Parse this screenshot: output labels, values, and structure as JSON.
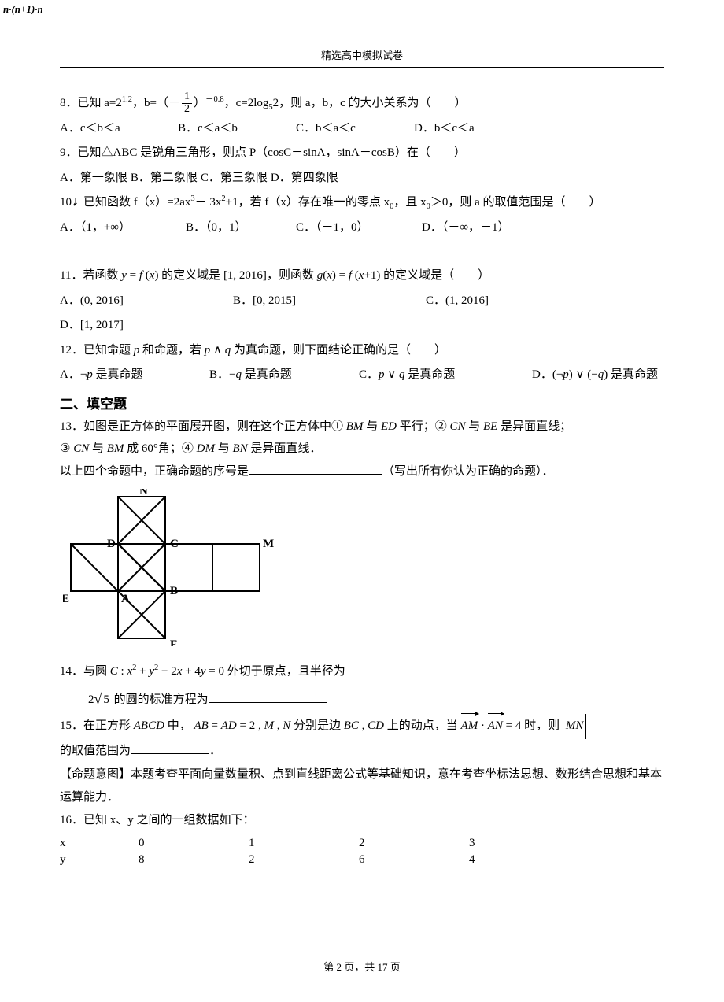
{
  "corner_note": "n·(n+1)·n",
  "header": "精选高中模拟试卷",
  "q8": {
    "stem_pre": "8．已知 a=2",
    "exp1": "1.2",
    "mid1": "，b=（－",
    "frac_num": "1",
    "frac_den": "2",
    "mid2": "）",
    "exp2": "－0.8",
    "mid3": "，c=2log",
    "sub52": "5",
    "tail": "2，则 a，b，c 的大小关系为（　　）",
    "A": "A．c＜b＜a",
    "B": "B．c＜a＜b",
    "C": "C．b＜a＜c",
    "D": "D．b＜c＜a"
  },
  "q9": {
    "stem": "9．已知△ABC 是锐角三角形，则点 P（cosC－sinA，sinA－cosB）在（　　）",
    "A": "A．第一象限",
    "B": "B．第二象限",
    "C": "C．第三象限",
    "D": "D．第四象限"
  },
  "q10": {
    "stem_pre": "10．已知函数 f（x）=2ax",
    "exp3": "3",
    "mid": "－ 3x",
    "exp2": "2",
    "stem_mid2": "+1，若 f（x）存在唯一的零点 x",
    "sub0a": "0",
    "stem_mid3": "，且 x",
    "sub0b": "0",
    "stem_tail": "＞0，则 a 的取值范围是（　　）",
    "A": "A．（1，+∞）",
    "B": "B．（0，1）",
    "C": "C．（－1，0）",
    "D": "D．（－∞，－1）"
  },
  "q11": {
    "stem": "11．若函数 y = f (x) 的定义域是 [1, 2016]，则函数 g(x) = f (x+1) 的定义域是（　　）",
    "A": "A．(0, 2016]",
    "B": "B．[0, 2015]",
    "C": "C．(1, 2016]",
    "D": "D．[1, 2017]"
  },
  "q12": {
    "stem": "12．已知命题 p 和命题，若 p ∧ q 为真命题，则下面结论正确的是（　　）",
    "A": "A．¬p 是真命题",
    "B": "B．¬q 是真命题",
    "C": "C．p ∨ q 是真命题",
    "D": "D．(¬p) ∨ (¬q) 是真命题"
  },
  "section2": "二、填空题",
  "q13": {
    "l1": "13．如图是正方体的平面展开图，则在这个正方体中① BM 与 ED 平行；② CN 与 BE 是异面直线；",
    "l2": "③ CN 与 BM 成 60°角；④ DM 与 BN 是异面直线．",
    "l3a": "以上四个命题中，正确命题的序号是",
    "l3b": "（写出所有你认为正确的命题）．",
    "labels": {
      "N": "N",
      "D": "D",
      "C": "C",
      "M": "M",
      "E": "E",
      "A": "A",
      "B": "B",
      "F": "F"
    }
  },
  "q14": {
    "l1": "14．与圆 C : x² + y² − 2x + 4y = 0 外切于原点，且半径为",
    "l2a": "2",
    "l2rad": "5",
    "l2b": " 的圆的标准方程为"
  },
  "q15": {
    "l1a": "15．在正方形 ABCD 中， AB = AD = 2 , M , N 分别是边 BC , CD 上的动点，当 ",
    "vec1": "AM",
    "dot": " · ",
    "vec2": "AN",
    "l1b": " = 4 时，则 ",
    "abs": "MN",
    "l2": "的取值范围为",
    "l3": "【命题意图】本题考查平面向量数量积、点到直线距离公式等基础知识，意在考查坐标法思想、数形结合思想和基本运算能力．"
  },
  "q16": {
    "stem": "16．已知 x、y 之间的一组数据如下：",
    "head": [
      "x",
      "0",
      "1",
      "2",
      "3"
    ],
    "row": [
      "y",
      "8",
      "2",
      "6",
      "4"
    ]
  },
  "footer_a": "第 ",
  "footer_p": "2",
  "footer_b": " 页，共 ",
  "footer_t": "17",
  "footer_c": " 页",
  "svg": {
    "unit": 60,
    "stroke": "#000000",
    "stroke_w": 2
  }
}
